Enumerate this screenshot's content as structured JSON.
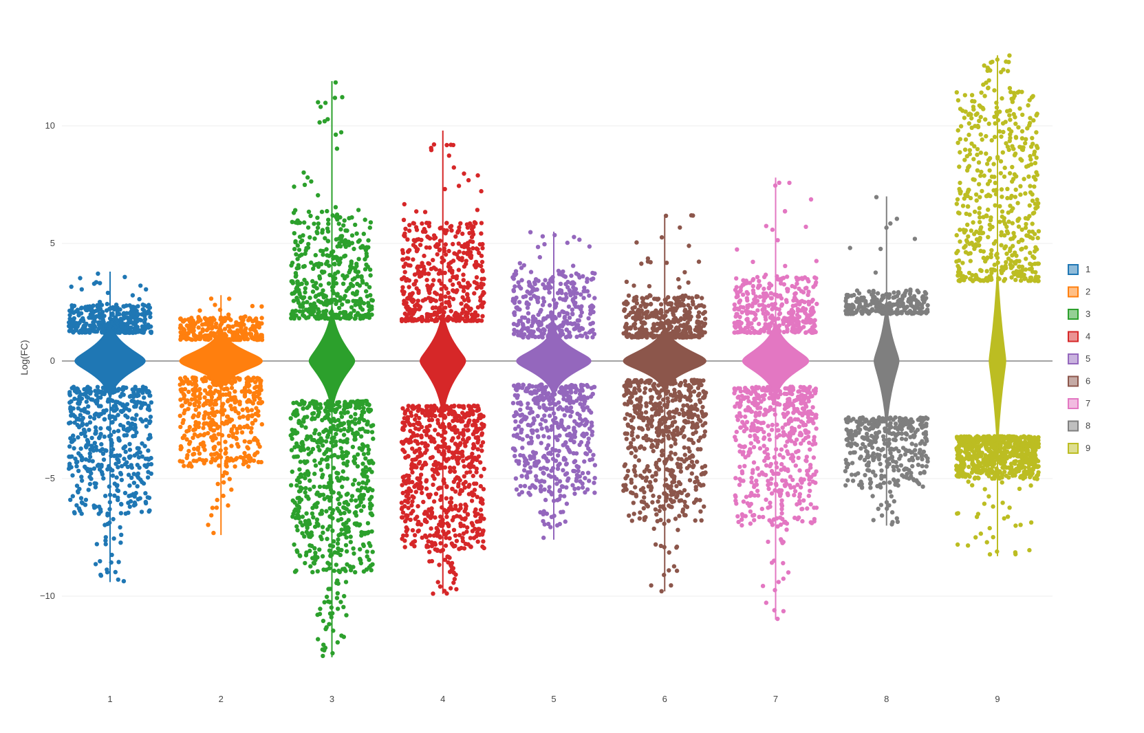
{
  "chart_data": {
    "type": "violin",
    "ylabel": "Log(FC)",
    "xlabel": "",
    "ylim": [
      -13,
      13.5
    ],
    "yticks": [
      -10,
      -5,
      0,
      5,
      10
    ],
    "ytick_labels": [
      "−10",
      "−5",
      "0",
      "5",
      "10"
    ],
    "grid": true,
    "legend_position": "right",
    "categories": [
      "1",
      "2",
      "3",
      "4",
      "5",
      "6",
      "7",
      "8",
      "9"
    ],
    "series": [
      {
        "name": "1",
        "color": "#1f77b4",
        "min": -9.4,
        "max": 3.8,
        "gap": [
          -1.1,
          1.2
        ],
        "upper_max": 2.4,
        "lower_min": -6.5,
        "center_width": 0.85,
        "point_count": 900
      },
      {
        "name": "2",
        "color": "#ff7f0e",
        "min": -7.4,
        "max": 2.8,
        "gap": [
          -0.7,
          0.9
        ],
        "upper_max": 1.9,
        "lower_min": -4.5,
        "center_width": 1.0,
        "point_count": 750
      },
      {
        "name": "3",
        "color": "#2ca02c",
        "min": -12.6,
        "max": 11.9,
        "gap": [
          -1.7,
          1.8
        ],
        "upper_max": 6.4,
        "lower_min": -9.0,
        "center_width": 0.55,
        "point_count": 1100
      },
      {
        "name": "4",
        "color": "#d62728",
        "min": -9.9,
        "max": 9.8,
        "gap": [
          -1.9,
          1.7
        ],
        "upper_max": 5.9,
        "lower_min": -8.0,
        "center_width": 0.55,
        "point_count": 1150
      },
      {
        "name": "5",
        "color": "#9467bd",
        "min": -7.6,
        "max": 5.5,
        "gap": [
          -1.0,
          1.0
        ],
        "upper_max": 3.9,
        "lower_min": -5.8,
        "center_width": 0.9,
        "point_count": 800
      },
      {
        "name": "6",
        "color": "#8c564b",
        "min": -9.8,
        "max": 6.2,
        "gap": [
          -0.8,
          1.0
        ],
        "upper_max": 2.8,
        "lower_min": -6.8,
        "center_width": 1.0,
        "point_count": 950
      },
      {
        "name": "7",
        "color": "#e377c2",
        "min": -11.0,
        "max": 7.8,
        "gap": [
          -1.1,
          1.2
        ],
        "upper_max": 3.6,
        "lower_min": -7.0,
        "center_width": 0.8,
        "point_count": 900
      },
      {
        "name": "8",
        "color": "#7f7f7f",
        "min": -7.0,
        "max": 7.0,
        "gap": [
          -2.4,
          2.0
        ],
        "upper_max": 3.0,
        "lower_min": -5.4,
        "center_width": 0.3,
        "point_count": 600
      },
      {
        "name": "9",
        "color": "#bcbd22",
        "min": -8.3,
        "max": 13.0,
        "gap": [
          -3.2,
          3.4
        ],
        "upper_max": 11.5,
        "lower_min": -5.0,
        "center_width": 0.2,
        "point_count": 1200
      }
    ]
  }
}
